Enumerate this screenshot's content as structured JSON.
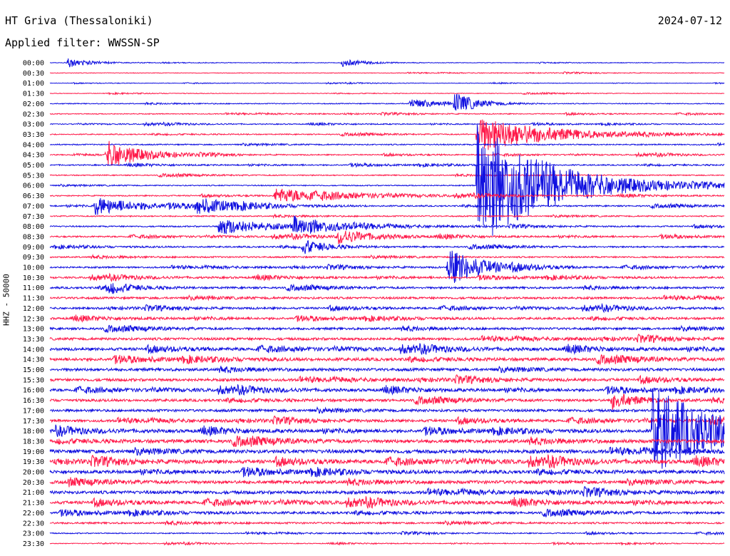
{
  "header": {
    "station": "HT Griva (Thessaloniki)",
    "date": "2024-07-12",
    "filter": "Applied filter: WWSSN-SP"
  },
  "colors": {
    "blue": "#1010e0",
    "red": "#ff1a4a"
  },
  "chart_data": {
    "type": "line",
    "title": "HT Griva (Thessaloniki)",
    "ylabel": "HHZ - 50000",
    "xlabel": "",
    "series_colors": "alternating blue / red per 30-minute trace",
    "rows": [
      "00:00",
      "00:30",
      "01:00",
      "01:30",
      "02:00",
      "02:30",
      "03:00",
      "03:30",
      "04:00",
      "04:30",
      "05:00",
      "05:30",
      "06:00",
      "06:30",
      "07:00",
      "07:30",
      "08:00",
      "08:30",
      "09:00",
      "09:30",
      "10:00",
      "10:30",
      "11:00",
      "11:30",
      "12:00",
      "12:30",
      "13:00",
      "13:30",
      "14:00",
      "14:30",
      "15:00",
      "15:30",
      "16:00",
      "16:30",
      "17:00",
      "17:30",
      "18:00",
      "18:30",
      "19:00",
      "19:30",
      "20:00",
      "20:30",
      "21:00",
      "21:30",
      "22:00",
      "22:30",
      "23:00",
      "23:30"
    ],
    "noise_level": [
      0.4,
      0.4,
      0.3,
      0.4,
      0.6,
      0.6,
      0.6,
      0.7,
      0.8,
      0.7,
      0.8,
      0.7,
      0.7,
      0.8,
      0.9,
      0.8,
      0.9,
      1.0,
      1.0,
      1.0,
      1.1,
      1.2,
      1.3,
      1.4,
      1.3,
      1.4,
      1.5,
      1.7,
      1.9,
      2.0,
      1.9,
      1.8,
      1.8,
      1.7,
      1.7,
      1.7,
      2.0,
      2.3,
      2.4,
      2.3,
      2.2,
      2.1,
      2.1,
      2.0,
      1.6,
      1.2,
      0.7,
      0.5
    ],
    "events": [
      {
        "row": "00:00",
        "minute": 0.8,
        "amplitude": 6,
        "duration_min": 1
      },
      {
        "row": "00:00",
        "minute": 13,
        "amplitude": 5,
        "duration_min": 1
      },
      {
        "row": "02:00",
        "minute": 16,
        "amplitude": 7,
        "duration_min": 1
      },
      {
        "row": "02:00",
        "minute": 18,
        "amplitude": 14,
        "duration_min": 1
      },
      {
        "row": "03:30",
        "minute": 19,
        "amplitude": 26,
        "duration_min": 3
      },
      {
        "row": "04:30",
        "minute": 2.5,
        "amplitude": 20,
        "duration_min": 1.5
      },
      {
        "row": "06:00",
        "minute": 19,
        "amplitude": 90,
        "duration_min": 3
      },
      {
        "row": "06:30",
        "minute": 10,
        "amplitude": 10,
        "duration_min": 3
      },
      {
        "row": "07:00",
        "minute": 2,
        "amplitude": 12,
        "duration_min": 2
      },
      {
        "row": "07:00",
        "minute": 6.5,
        "amplitude": 10,
        "duration_min": 2
      },
      {
        "row": "08:00",
        "minute": 7.5,
        "amplitude": 12,
        "duration_min": 2
      },
      {
        "row": "08:00",
        "minute": 10.8,
        "amplitude": 12,
        "duration_min": 2
      },
      {
        "row": "08:30",
        "minute": 12.8,
        "amplitude": 10,
        "duration_min": 1.5
      },
      {
        "row": "09:00",
        "minute": 11.2,
        "amplitude": 10,
        "duration_min": 1
      },
      {
        "row": "10:00",
        "minute": 17.7,
        "amplitude": 26,
        "duration_min": 1.5
      },
      {
        "row": "11:00",
        "minute": 2.5,
        "amplitude": 8,
        "duration_min": 1
      },
      {
        "row": "16:30",
        "minute": 25,
        "amplitude": 12,
        "duration_min": 1
      },
      {
        "row": "18:00",
        "minute": 26.8,
        "amplitude": 60,
        "duration_min": 3
      }
    ],
    "ylim_per_trace": [
      -7,
      7
    ],
    "grid": false
  }
}
